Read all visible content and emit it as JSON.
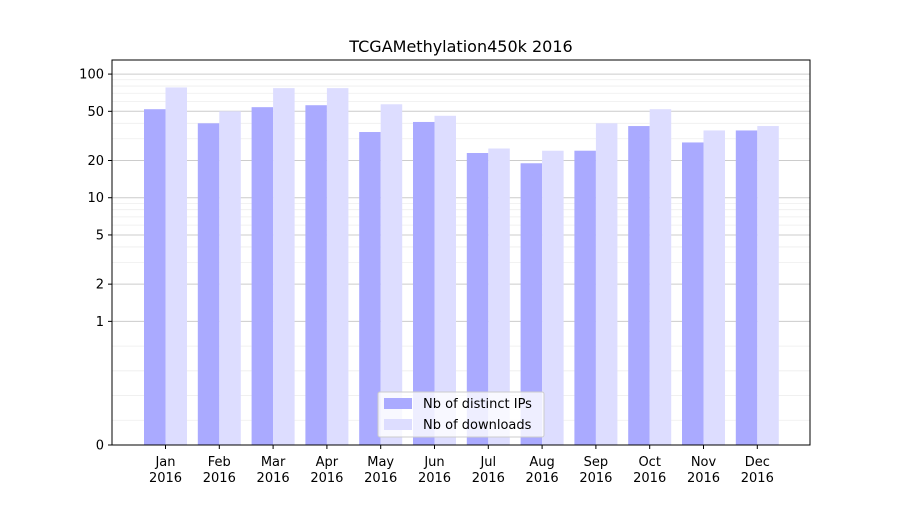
{
  "chart_data": {
    "type": "bar",
    "title": "TCGAMethylation450k 2016",
    "xlabel": "",
    "ylabel": "",
    "yscale": "symlog",
    "ylim": [
      0,
      130
    ],
    "yticks": [
      0,
      1,
      2,
      5,
      10,
      20,
      50,
      100
    ],
    "ytick_labels": [
      "0",
      "1",
      "2",
      "5",
      "10",
      "20",
      "50",
      "100"
    ],
    "grid": true,
    "legend_position": "bottom-center",
    "categories": [
      "Jan 2016",
      "Feb 2016",
      "Mar 2016",
      "Apr 2016",
      "May 2016",
      "Jun 2016",
      "Jul 2016",
      "Aug 2016",
      "Sep 2016",
      "Oct 2016",
      "Nov 2016",
      "Dec 2016"
    ],
    "category_lines": [
      [
        "Jan",
        "2016"
      ],
      [
        "Feb",
        "2016"
      ],
      [
        "Mar",
        "2016"
      ],
      [
        "Apr",
        "2016"
      ],
      [
        "May",
        "2016"
      ],
      [
        "Jun",
        "2016"
      ],
      [
        "Jul",
        "2016"
      ],
      [
        "Aug",
        "2016"
      ],
      [
        "Sep",
        "2016"
      ],
      [
        "Oct",
        "2016"
      ],
      [
        "Nov",
        "2016"
      ],
      [
        "Dec",
        "2016"
      ]
    ],
    "series": [
      {
        "name": "Nb of distinct IPs",
        "color": "#aaaaff",
        "values": [
          52,
          40,
          54,
          56,
          34,
          41,
          23,
          19,
          24,
          38,
          28,
          35
        ]
      },
      {
        "name": "Nb of downloads",
        "color": "#ddddff",
        "values": [
          78,
          50,
          77,
          77,
          57,
          46,
          25,
          24,
          40,
          52,
          35,
          38
        ]
      }
    ]
  }
}
